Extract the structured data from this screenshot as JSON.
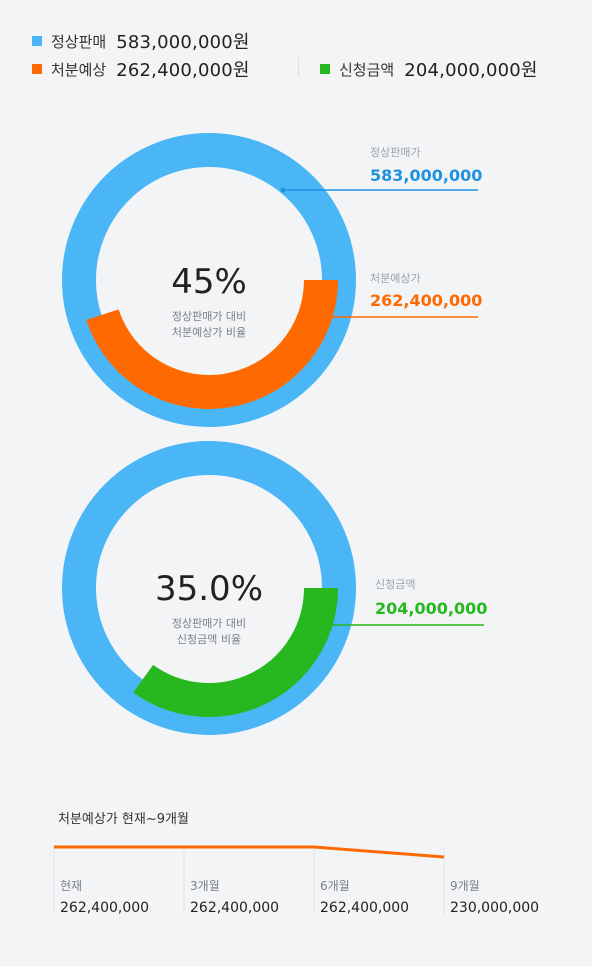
{
  "legend": {
    "items": [
      {
        "name": "정상판매",
        "value": "583,000,000원",
        "color": "#4ab6f5"
      },
      {
        "name": "처분예상",
        "value": "262,400,000원",
        "color": "#ff6a00"
      },
      {
        "name": "신청금액",
        "value": "204,000,000원",
        "color": "#26b81e"
      }
    ]
  },
  "chart_data": [
    {
      "type": "pie",
      "subtype": "donut",
      "center_label": "45%",
      "center_caption_line1": "정상판매가 대비",
      "center_caption_line2": "처분예상가 비율",
      "total": 583000000,
      "segments": [
        {
          "label": "정상판매가",
          "value": 583000000,
          "display_value": "583,000,000",
          "color": "#4ab6f5"
        },
        {
          "label": "처분예상가",
          "value": 262400000,
          "display_value": "262,400,000",
          "color": "#ff6a00",
          "fraction": 0.45
        }
      ]
    },
    {
      "type": "pie",
      "subtype": "donut",
      "center_label": "35.0%",
      "center_caption_line1": "정상판매가 대비",
      "center_caption_line2": "신청금액 비율",
      "total": 583000000,
      "segments": [
        {
          "label": "신청금액",
          "value": 204000000,
          "display_value": "204,000,000",
          "color": "#26b81e",
          "fraction": 0.35
        }
      ],
      "background_color": "#4ab6f5"
    },
    {
      "type": "line",
      "title": "처분예상가 현재~9개월",
      "categories": [
        "현재",
        "3개월",
        "6개월",
        "9개월"
      ],
      "values": [
        262400000,
        262400000,
        262400000,
        230000000
      ],
      "display_values": [
        "262,400,000",
        "262,400,000",
        "262,400,000",
        "230,000,000"
      ],
      "color": "#ff6a00"
    }
  ]
}
